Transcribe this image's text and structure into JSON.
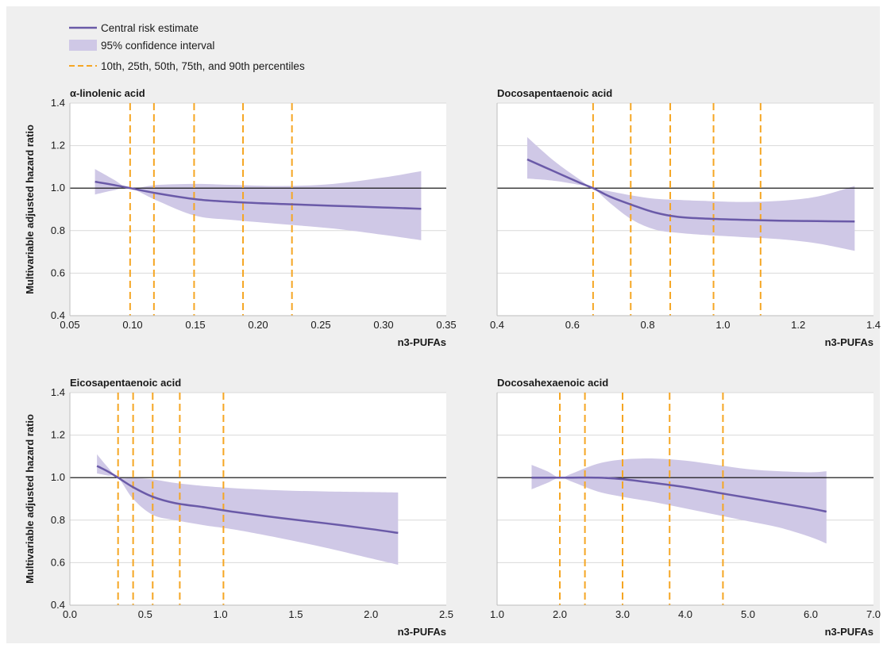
{
  "legend": {
    "central": "Central risk estimate",
    "ci": "95% confidence interval",
    "percentiles": "10th, 25th, 50th, 75th, and 90th percentiles"
  },
  "colors": {
    "line": "#6a5aa8",
    "band": "#cfc8e6",
    "percentile": "#f5a623",
    "reference": "#000000",
    "background": "#efefef",
    "plot_background": "#ffffff",
    "grid": "#d9d9d9"
  },
  "chart_data": [
    {
      "type": "line",
      "title": "α-linolenic acid",
      "xlabel": "n3-PUFAs",
      "ylabel": "Multivariable adjusted hazard ratio",
      "xlim": [
        0.05,
        0.35
      ],
      "ylim": [
        0.4,
        1.4
      ],
      "xticks": [
        "0.05",
        "0.10",
        "0.15",
        "0.20",
        "0.25",
        "0.30",
        "0.35"
      ],
      "yticks": [
        "0.4",
        "0.6",
        "0.8",
        "1.0",
        "1.2",
        "1.4"
      ],
      "reference_y": 1.0,
      "percentiles": [
        0.098,
        0.117,
        0.149,
        0.188,
        0.227
      ],
      "series": [
        {
          "name": "Central risk estimate",
          "x": [
            0.07,
            0.085,
            0.098,
            0.12,
            0.15,
            0.18,
            0.22,
            0.26,
            0.3,
            0.33
          ],
          "y": [
            1.03,
            1.015,
            1.0,
            0.975,
            0.948,
            0.935,
            0.925,
            0.917,
            0.909,
            0.903
          ]
        },
        {
          "name": "95% confidence interval",
          "x": [
            0.07,
            0.085,
            0.098,
            0.12,
            0.15,
            0.18,
            0.22,
            0.26,
            0.3,
            0.33
          ],
          "lower": [
            0.97,
            0.99,
            1.0,
            0.94,
            0.87,
            0.85,
            0.83,
            0.81,
            0.78,
            0.755
          ],
          "upper": [
            1.09,
            1.04,
            1.0,
            1.015,
            1.02,
            1.015,
            1.01,
            1.02,
            1.05,
            1.08
          ]
        }
      ]
    },
    {
      "type": "line",
      "title": "Docosapentaenoic acid",
      "xlabel": "n3-PUFAs",
      "ylabel": "",
      "xlim": [
        0.4,
        1.4
      ],
      "ylim": [
        0.4,
        1.4
      ],
      "xticks": [
        "0.4",
        "0.6",
        "0.8",
        "1.0",
        "1.2",
        "1.4"
      ],
      "yticks": [],
      "reference_y": 1.0,
      "percentiles": [
        0.655,
        0.755,
        0.86,
        0.975,
        1.1
      ],
      "series": [
        {
          "name": "Central risk estimate",
          "x": [
            0.48,
            0.55,
            0.62,
            0.655,
            0.7,
            0.76,
            0.82,
            0.88,
            0.95,
            1.05,
            1.15,
            1.25,
            1.35
          ],
          "y": [
            1.135,
            1.08,
            1.025,
            1.0,
            0.96,
            0.92,
            0.885,
            0.865,
            0.857,
            0.851,
            0.847,
            0.845,
            0.843
          ]
        },
        {
          "name": "95% confidence interval",
          "x": [
            0.48,
            0.55,
            0.62,
            0.655,
            0.7,
            0.76,
            0.82,
            0.88,
            0.95,
            1.05,
            1.15,
            1.25,
            1.35
          ],
          "lower": [
            1.045,
            1.035,
            1.015,
            1.0,
            0.93,
            0.85,
            0.805,
            0.79,
            0.78,
            0.77,
            0.76,
            0.74,
            0.705
          ],
          "upper": [
            1.24,
            1.13,
            1.04,
            1.0,
            0.985,
            0.965,
            0.95,
            0.945,
            0.94,
            0.935,
            0.94,
            0.96,
            1.01
          ]
        }
      ]
    },
    {
      "type": "line",
      "title": "Eicosapentaenoic acid",
      "xlabel": "n3-PUFAs",
      "ylabel": "Multivariable adjusted hazard ratio",
      "xlim": [
        0.0,
        2.5
      ],
      "ylim": [
        0.4,
        1.4
      ],
      "xticks": [
        "0.0",
        "0.5",
        "1.0",
        "1.5",
        "2.0",
        "2.5"
      ],
      "yticks": [
        "0.4",
        "0.6",
        "0.8",
        "1.0",
        "1.2",
        "1.4"
      ],
      "reference_y": 1.0,
      "percentiles": [
        0.32,
        0.42,
        0.55,
        0.73,
        1.02
      ],
      "series": [
        {
          "name": "Central risk estimate",
          "x": [
            0.18,
            0.25,
            0.32,
            0.42,
            0.55,
            0.7,
            0.9,
            1.1,
            1.4,
            1.7,
            2.0,
            2.18
          ],
          "y": [
            1.055,
            1.03,
            1.0,
            0.955,
            0.91,
            0.88,
            0.86,
            0.838,
            0.81,
            0.785,
            0.758,
            0.74
          ]
        },
        {
          "name": "95% confidence interval",
          "x": [
            0.18,
            0.25,
            0.32,
            0.42,
            0.55,
            0.7,
            0.9,
            1.1,
            1.4,
            1.7,
            2.0,
            2.18
          ],
          "lower": [
            1.02,
            1.01,
            1.0,
            0.9,
            0.825,
            0.8,
            0.775,
            0.755,
            0.715,
            0.67,
            0.62,
            0.59
          ],
          "upper": [
            1.11,
            1.05,
            1.0,
            0.998,
            0.992,
            0.975,
            0.96,
            0.95,
            0.94,
            0.935,
            0.932,
            0.93
          ]
        }
      ]
    },
    {
      "type": "line",
      "title": "Docosahexaenoic acid",
      "xlabel": "n3-PUFAs",
      "ylabel": "",
      "xlim": [
        1.0,
        7.0
      ],
      "ylim": [
        0.4,
        1.4
      ],
      "xticks": [
        "1.0",
        "2.0",
        "3.0",
        "4.0",
        "5.0",
        "6.0",
        "7.0"
      ],
      "yticks": [],
      "reference_y": 1.0,
      "percentiles": [
        2.0,
        2.4,
        3.0,
        3.75,
        4.6
      ],
      "series": [
        {
          "name": "Central risk estimate",
          "x": [
            1.55,
            1.8,
            2.0,
            2.2,
            2.6,
            3.0,
            3.5,
            4.0,
            4.5,
            5.0,
            5.5,
            6.0,
            6.25
          ],
          "y": [
            1.0,
            1.0,
            1.0,
            1.0,
            1.0,
            0.993,
            0.975,
            0.955,
            0.93,
            0.905,
            0.88,
            0.855,
            0.84
          ]
        },
        {
          "name": "95% confidence interval",
          "x": [
            1.55,
            1.8,
            2.0,
            2.2,
            2.6,
            3.0,
            3.5,
            4.0,
            4.5,
            5.0,
            5.5,
            6.0,
            6.25
          ],
          "lower": [
            0.945,
            0.975,
            1.0,
            0.98,
            0.935,
            0.91,
            0.885,
            0.855,
            0.825,
            0.795,
            0.765,
            0.72,
            0.69
          ],
          "upper": [
            1.06,
            1.03,
            1.0,
            1.02,
            1.065,
            1.085,
            1.09,
            1.08,
            1.06,
            1.04,
            1.03,
            1.025,
            1.03
          ]
        }
      ]
    }
  ]
}
